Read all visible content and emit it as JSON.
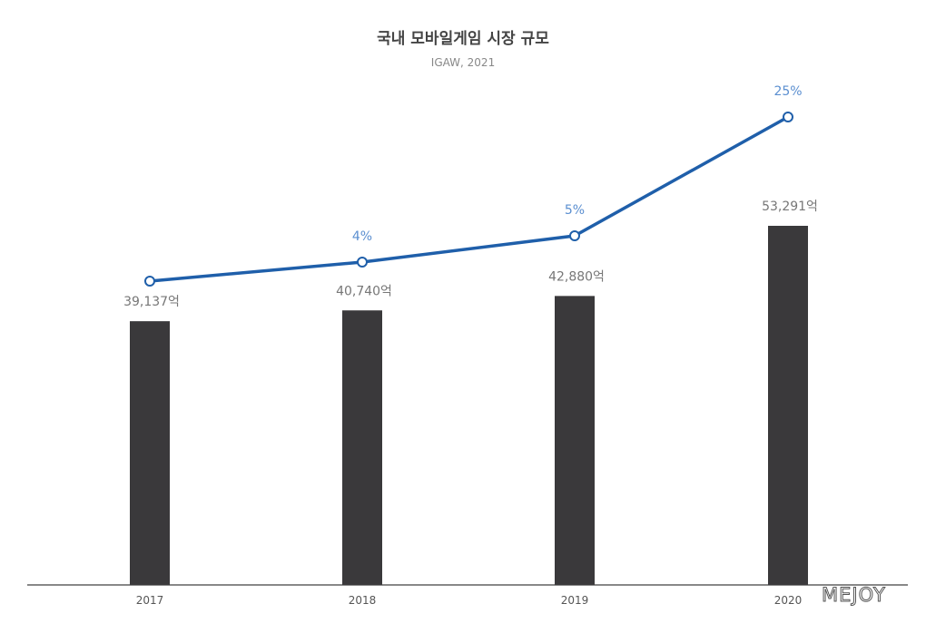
{
  "chart_data": {
    "type": "bar",
    "title": "국내 모바일게임 시장 규모",
    "subtitle": "IGAW, 2021",
    "categories": [
      "2017",
      "2018",
      "2019",
      "2020"
    ],
    "series": [
      {
        "type": "bar",
        "values": [
          39137,
          40740,
          42880,
          53291
        ],
        "labels": [
          "39,137억",
          "40,740억",
          "42,880억",
          "53,291억"
        ],
        "color": "#3a393b"
      },
      {
        "type": "line",
        "values": [
          null,
          4,
          5,
          25
        ],
        "labels": [
          "",
          "4%",
          "5%",
          "25%"
        ],
        "color": "#1f5faa",
        "label_color": "#5b8fd0"
      }
    ],
    "ylim": [
      0,
      53291
    ],
    "grid": false
  },
  "watermark": "MEJOY"
}
